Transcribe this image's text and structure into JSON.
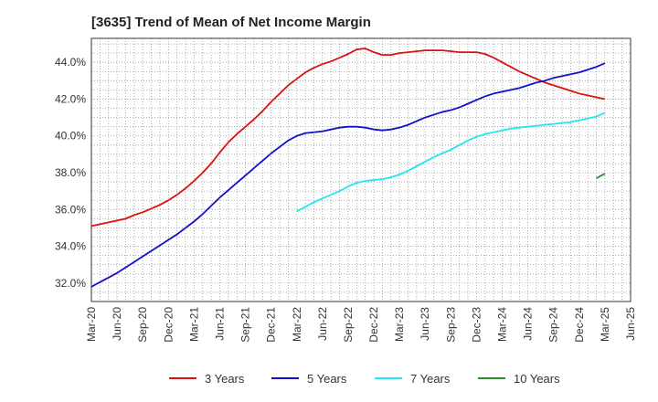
{
  "chart_data": {
    "type": "line",
    "title": "[3635]  Trend of Mean of Net Income Margin",
    "xlabel": "",
    "ylabel": "",
    "ylim": [
      31.0,
      45.3
    ],
    "y_ticks": [
      "32.0%",
      "34.0%",
      "36.0%",
      "38.0%",
      "40.0%",
      "42.0%",
      "44.0%"
    ],
    "y_tick_values": [
      32,
      34,
      36,
      38,
      40,
      42,
      44
    ],
    "x_ticks": [
      "Mar-20",
      "Jun-20",
      "Sep-20",
      "Dec-20",
      "Mar-21",
      "Jun-21",
      "Sep-21",
      "Dec-21",
      "Mar-22",
      "Jun-22",
      "Sep-22",
      "Dec-22",
      "Mar-23",
      "Jun-23",
      "Sep-23",
      "Dec-23",
      "Mar-24",
      "Jun-24",
      "Sep-24",
      "Dec-24",
      "Mar-25",
      "Jun-25"
    ],
    "x_range": [
      "Mar-20",
      "Jun-25"
    ],
    "grid": true,
    "legend_position": "bottom",
    "series": [
      {
        "name": "3 Years",
        "color": "#dd1111",
        "x": [
          "Mar-20",
          "Apr-20",
          "May-20",
          "Jun-20",
          "Jul-20",
          "Aug-20",
          "Sep-20",
          "Oct-20",
          "Nov-20",
          "Dec-20",
          "Jan-21",
          "Feb-21",
          "Mar-21",
          "Apr-21",
          "May-21",
          "Jun-21",
          "Jul-21",
          "Aug-21",
          "Sep-21",
          "Oct-21",
          "Nov-21",
          "Dec-21",
          "Jan-22",
          "Feb-22",
          "Mar-22",
          "Apr-22",
          "May-22",
          "Jun-22",
          "Jul-22",
          "Aug-22",
          "Sep-22",
          "Oct-22",
          "Nov-22",
          "Dec-22",
          "Jan-23",
          "Feb-23",
          "Mar-23",
          "Apr-23",
          "May-23",
          "Jun-23",
          "Jul-23",
          "Aug-23",
          "Sep-23",
          "Oct-23",
          "Nov-23",
          "Dec-23",
          "Jan-24",
          "Feb-24",
          "Mar-24",
          "Apr-24",
          "May-24",
          "Jun-24",
          "Jul-24",
          "Aug-24",
          "Sep-24",
          "Oct-24",
          "Nov-24",
          "Dec-24",
          "Jan-25",
          "Feb-25",
          "Mar-25"
        ],
        "values": [
          35.1,
          35.2,
          35.3,
          35.4,
          35.5,
          35.7,
          35.85,
          36.05,
          36.25,
          36.5,
          36.8,
          37.15,
          37.55,
          38.0,
          38.5,
          39.1,
          39.65,
          40.1,
          40.5,
          40.9,
          41.35,
          41.85,
          42.3,
          42.75,
          43.1,
          43.45,
          43.7,
          43.9,
          44.05,
          44.25,
          44.45,
          44.7,
          44.75,
          44.55,
          44.4,
          44.4,
          44.5,
          44.55,
          44.6,
          44.65,
          44.65,
          44.65,
          44.6,
          44.55,
          44.55,
          44.55,
          44.45,
          44.25,
          44.0,
          43.75,
          43.5,
          43.3,
          43.1,
          42.9,
          42.75,
          42.6,
          42.45,
          42.3,
          42.2,
          42.1,
          42.0
        ]
      },
      {
        "name": "5 Years",
        "color": "#1111cc",
        "x": [
          "Mar-20",
          "Apr-20",
          "May-20",
          "Jun-20",
          "Jul-20",
          "Aug-20",
          "Sep-20",
          "Oct-20",
          "Nov-20",
          "Dec-20",
          "Jan-21",
          "Feb-21",
          "Mar-21",
          "Apr-21",
          "May-21",
          "Jun-21",
          "Jul-21",
          "Aug-21",
          "Sep-21",
          "Oct-21",
          "Nov-21",
          "Dec-21",
          "Jan-22",
          "Feb-22",
          "Mar-22",
          "Apr-22",
          "May-22",
          "Jun-22",
          "Jul-22",
          "Aug-22",
          "Sep-22",
          "Oct-22",
          "Nov-22",
          "Dec-22",
          "Jan-23",
          "Feb-23",
          "Mar-23",
          "Apr-23",
          "May-23",
          "Jun-23",
          "Jul-23",
          "Aug-23",
          "Sep-23",
          "Oct-23",
          "Nov-23",
          "Dec-23",
          "Jan-24",
          "Feb-24",
          "Mar-24",
          "Apr-24",
          "May-24",
          "Jun-24",
          "Jul-24",
          "Aug-24",
          "Sep-24",
          "Oct-24",
          "Nov-24",
          "Dec-24",
          "Jan-25",
          "Feb-25",
          "Mar-25"
        ],
        "values": [
          31.8,
          32.05,
          32.3,
          32.55,
          32.85,
          33.15,
          33.45,
          33.75,
          34.05,
          34.35,
          34.65,
          35.0,
          35.35,
          35.75,
          36.2,
          36.65,
          37.05,
          37.45,
          37.85,
          38.25,
          38.65,
          39.05,
          39.4,
          39.75,
          40.0,
          40.15,
          40.2,
          40.25,
          40.35,
          40.45,
          40.5,
          40.5,
          40.45,
          40.35,
          40.3,
          40.35,
          40.45,
          40.6,
          40.8,
          41.0,
          41.15,
          41.3,
          41.4,
          41.55,
          41.75,
          41.95,
          42.15,
          42.3,
          42.4,
          42.5,
          42.6,
          42.75,
          42.9,
          43.0,
          43.15,
          43.25,
          43.35,
          43.45,
          43.6,
          43.75,
          43.95
        ]
      },
      {
        "name": "7 Years",
        "color": "#22e6f0",
        "x": [
          "Mar-22",
          "Apr-22",
          "May-22",
          "Jun-22",
          "Jul-22",
          "Aug-22",
          "Sep-22",
          "Oct-22",
          "Nov-22",
          "Dec-22",
          "Jan-23",
          "Feb-23",
          "Mar-23",
          "Apr-23",
          "May-23",
          "Jun-23",
          "Jul-23",
          "Aug-23",
          "Sep-23",
          "Oct-23",
          "Nov-23",
          "Dec-23",
          "Jan-24",
          "Feb-24",
          "Mar-24",
          "Apr-24",
          "May-24",
          "Jun-24",
          "Jul-24",
          "Aug-24",
          "Sep-24",
          "Oct-24",
          "Nov-24",
          "Dec-24",
          "Jan-25",
          "Feb-25",
          "Mar-25"
        ],
        "values": [
          35.9,
          36.15,
          36.4,
          36.6,
          36.8,
          37.0,
          37.25,
          37.45,
          37.55,
          37.6,
          37.65,
          37.75,
          37.9,
          38.1,
          38.35,
          38.6,
          38.85,
          39.05,
          39.25,
          39.5,
          39.75,
          39.95,
          40.1,
          40.2,
          40.3,
          40.4,
          40.45,
          40.5,
          40.55,
          40.6,
          40.65,
          40.7,
          40.75,
          40.85,
          40.95,
          41.05,
          41.25
        ]
      },
      {
        "name": "10 Years",
        "color": "#2e8b2e",
        "x": [
          "Feb-25",
          "Mar-25"
        ],
        "values": [
          37.7,
          37.95
        ]
      }
    ]
  }
}
